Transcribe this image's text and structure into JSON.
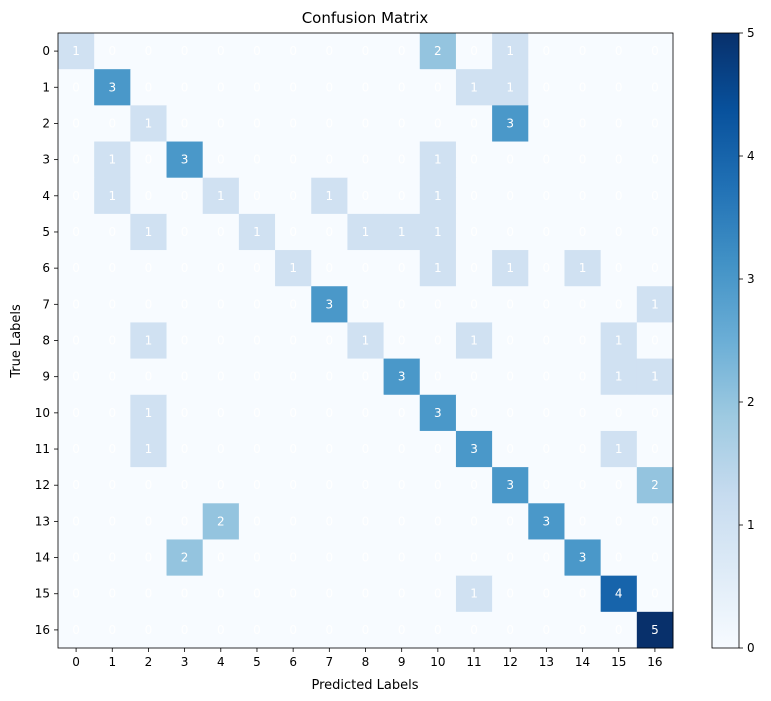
{
  "chart_data": {
    "type": "heatmap",
    "title": "Confusion Matrix",
    "xlabel": "Predicted Labels",
    "ylabel": "True Labels",
    "x_labels": [
      "0",
      "1",
      "2",
      "3",
      "4",
      "5",
      "6",
      "7",
      "8",
      "9",
      "10",
      "11",
      "12",
      "13",
      "14",
      "15",
      "16"
    ],
    "y_labels": [
      "0",
      "1",
      "2",
      "3",
      "4",
      "5",
      "6",
      "7",
      "8",
      "9",
      "10",
      "11",
      "12",
      "13",
      "14",
      "15",
      "16"
    ],
    "matrix": [
      [
        1,
        0,
        0,
        0,
        0,
        0,
        0,
        0,
        0,
        0,
        2,
        0,
        1,
        0,
        0,
        0,
        0
      ],
      [
        0,
        3,
        0,
        0,
        0,
        0,
        0,
        0,
        0,
        0,
        0,
        1,
        1,
        0,
        0,
        0,
        0
      ],
      [
        0,
        0,
        1,
        0,
        0,
        0,
        0,
        0,
        0,
        0,
        0,
        0,
        3,
        0,
        0,
        0,
        0
      ],
      [
        0,
        1,
        0,
        3,
        0,
        0,
        0,
        0,
        0,
        0,
        1,
        0,
        0,
        0,
        0,
        0,
        0
      ],
      [
        0,
        1,
        0,
        0,
        1,
        0,
        0,
        1,
        0,
        0,
        1,
        0,
        0,
        0,
        0,
        0,
        0
      ],
      [
        0,
        0,
        1,
        0,
        0,
        1,
        0,
        0,
        1,
        1,
        1,
        0,
        0,
        0,
        0,
        0,
        0
      ],
      [
        0,
        0,
        0,
        0,
        0,
        0,
        1,
        0,
        0,
        0,
        1,
        0,
        1,
        0,
        1,
        0,
        0
      ],
      [
        0,
        0,
        0,
        0,
        0,
        0,
        0,
        3,
        0,
        0,
        0,
        0,
        0,
        0,
        0,
        0,
        1
      ],
      [
        0,
        0,
        1,
        0,
        0,
        0,
        0,
        0,
        1,
        0,
        0,
        1,
        0,
        0,
        0,
        1,
        0
      ],
      [
        0,
        0,
        0,
        0,
        0,
        0,
        0,
        0,
        0,
        3,
        0,
        0,
        0,
        0,
        0,
        1,
        1
      ],
      [
        0,
        0,
        1,
        0,
        0,
        0,
        0,
        0,
        0,
        0,
        3,
        0,
        0,
        0,
        0,
        0,
        0
      ],
      [
        0,
        0,
        1,
        0,
        0,
        0,
        0,
        0,
        0,
        0,
        0,
        3,
        0,
        0,
        0,
        1,
        0
      ],
      [
        0,
        0,
        0,
        0,
        0,
        0,
        0,
        0,
        0,
        0,
        0,
        0,
        3,
        0,
        0,
        0,
        2
      ],
      [
        0,
        0,
        0,
        0,
        2,
        0,
        0,
        0,
        0,
        0,
        0,
        0,
        0,
        3,
        0,
        0,
        0
      ],
      [
        0,
        0,
        0,
        2,
        0,
        0,
        0,
        0,
        0,
        0,
        0,
        0,
        0,
        0,
        3,
        0,
        0
      ],
      [
        0,
        0,
        0,
        0,
        0,
        0,
        0,
        0,
        0,
        0,
        0,
        1,
        0,
        0,
        0,
        4,
        0
      ],
      [
        0,
        0,
        0,
        0,
        0,
        0,
        0,
        0,
        0,
        0,
        0,
        0,
        0,
        0,
        0,
        0,
        5
      ]
    ],
    "vmin": 0,
    "vmax": 5,
    "colormap": "Blues",
    "colorbar_ticks": [
      0,
      1,
      2,
      3,
      4,
      5
    ],
    "grid": false
  }
}
